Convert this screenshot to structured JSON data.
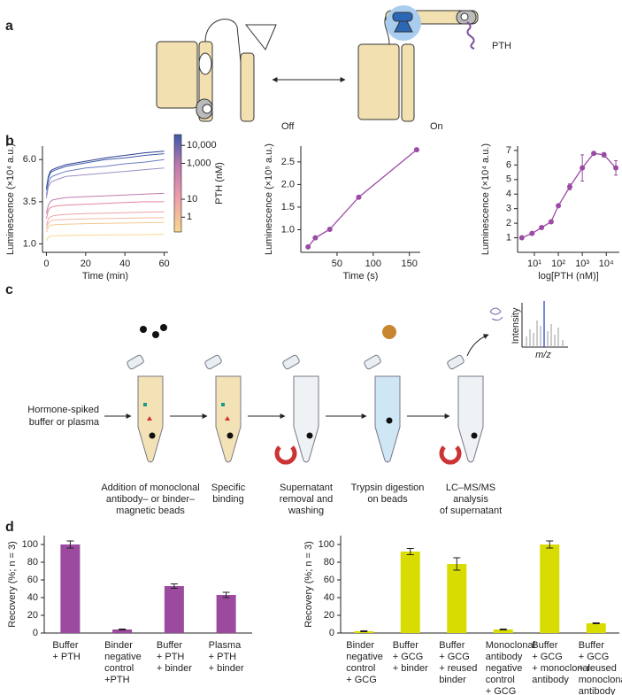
{
  "panel_labels": [
    "a",
    "b",
    "c",
    "d"
  ],
  "diagram_a": {
    "off": "Off",
    "on": "On",
    "ligand": "PTH"
  },
  "workflow_c": {
    "input": [
      "Hormone-spiked",
      "buffer or plasma"
    ],
    "steps": [
      [
        "Addition of monoclonal",
        "antibody– or binder–",
        "magnetic beads"
      ],
      [
        "Specific",
        "binding"
      ],
      [
        "Supernatant",
        "removal and",
        "washing"
      ],
      [
        "Trypsin digestion",
        "on beads"
      ],
      [
        "LC–MS/MS",
        "analysis",
        "of supernatant"
      ]
    ],
    "spectrum": {
      "y_label": "Intensity",
      "x_label": "m/z"
    }
  },
  "chart_data": [
    {
      "type": "line",
      "x_label": "Time (min)",
      "y_label": "Luminescence (×10⁴ a.u.)",
      "x": [
        0,
        1,
        2,
        3,
        5,
        10,
        20,
        30,
        40,
        50,
        60
      ],
      "xlim": [
        -2,
        62
      ],
      "xticks": [
        0,
        20,
        40,
        60
      ],
      "ylim": [
        0.5,
        6.8
      ],
      "yticks": [
        {
          "value": 1,
          "label": "1.0"
        },
        3.5,
        {
          "value": 6,
          "label": "6.0"
        }
      ],
      "series": [
        {
          "color": "#2b3f8f",
          "values": [
            4.3,
            5.0,
            5.3,
            5.4,
            5.5,
            5.7,
            5.9,
            6.1,
            6.25,
            6.4,
            6.5
          ]
        },
        {
          "color": "#3d5aa8",
          "values": [
            4.2,
            4.9,
            5.2,
            5.3,
            5.4,
            5.6,
            5.8,
            6.0,
            6.1,
            6.25,
            6.35
          ]
        },
        {
          "color": "#6a7fc0",
          "values": [
            3.9,
            4.6,
            4.9,
            5.0,
            5.1,
            5.3,
            5.5,
            5.6,
            5.75,
            5.85,
            6.0
          ]
        },
        {
          "color": "#9a8ec6",
          "values": [
            3.7,
            4.4,
            4.6,
            4.7,
            4.8,
            5.0,
            5.1,
            5.2,
            5.3,
            5.4,
            5.5
          ]
        },
        {
          "color": "#c27ab0",
          "values": [
            2.8,
            3.3,
            3.5,
            3.6,
            3.65,
            3.75,
            3.8,
            3.85,
            3.9,
            3.95,
            4.0
          ]
        },
        {
          "color": "#e486a0",
          "values": [
            2.5,
            3.0,
            3.15,
            3.2,
            3.25,
            3.3,
            3.35,
            3.4,
            3.45,
            3.5,
            3.5
          ]
        },
        {
          "color": "#f0a0a8",
          "values": [
            2.1,
            2.5,
            2.6,
            2.65,
            2.7,
            2.75,
            2.8,
            2.82,
            2.85,
            2.88,
            2.9
          ]
        },
        {
          "color": "#f3b8a0",
          "values": [
            1.9,
            2.25,
            2.35,
            2.4,
            2.42,
            2.45,
            2.48,
            2.5,
            2.52,
            2.54,
            2.55
          ]
        },
        {
          "color": "#f5c890",
          "values": [
            1.7,
            2.0,
            2.1,
            2.12,
            2.14,
            2.17,
            2.2,
            2.22,
            2.24,
            2.25,
            2.27
          ]
        },
        {
          "color": "#f7d890",
          "values": [
            1.2,
            1.4,
            1.45,
            1.47,
            1.48,
            1.5,
            1.52,
            1.53,
            1.54,
            1.55,
            1.56
          ]
        }
      ],
      "colorbar": {
        "label": "PTH (nM)",
        "log": true,
        "lim": [
          0.15,
          40000
        ],
        "ticks": [
          1,
          10,
          {
            "value": 1000,
            "label": "1,000"
          },
          {
            "value": 10000,
            "label": "10,000"
          }
        ],
        "colors": [
          "#f7d890",
          "#f0a0a8",
          "#c27ab0",
          "#3d5aa8"
        ]
      }
    },
    {
      "type": "line",
      "markers": true,
      "x_label": "Time (s)",
      "y_label": "Luminescence (×10⁵ a.u.)",
      "x": [
        10,
        20,
        40,
        80,
        160
      ],
      "xlim": [
        0,
        165
      ],
      "xticks": [
        50,
        100,
        150
      ],
      "ylim": [
        0.5,
        2.85
      ],
      "yticks": [
        {
          "value": 1,
          "label": "1.0"
        },
        1.5,
        {
          "value": 2,
          "label": "2.0"
        },
        2.5
      ],
      "series": [
        {
          "color": "#9b4aa6",
          "values": [
            0.62,
            0.82,
            1.01,
            1.72,
            2.77
          ]
        }
      ]
    },
    {
      "type": "line",
      "markers": true,
      "log_x": true,
      "x_label": "log[PTH (nM)]",
      "y_label": "Luminescence (×10⁴ a.u.)",
      "x": [
        3,
        8,
        20,
        50,
        100,
        300,
        1000,
        3000,
        8000,
        25000
      ],
      "xlim": [
        2,
        35000
      ],
      "xticks": [
        {
          "value": 10,
          "label": "10¹"
        },
        {
          "value": 100,
          "label": "10²"
        },
        {
          "value": 1000,
          "label": "10³"
        },
        {
          "value": 10000,
          "label": "10⁴"
        }
      ],
      "ylim": [
        0,
        7.3
      ],
      "yticks": [
        1,
        2,
        3,
        4,
        5,
        6,
        7
      ],
      "series": [
        {
          "color": "#9b4aa6",
          "values": [
            1.0,
            1.3,
            1.7,
            2.1,
            3.2,
            4.5,
            5.8,
            6.8,
            6.7,
            5.8
          ],
          "errors": [
            0.05,
            0.05,
            0.05,
            0.08,
            0.1,
            0.2,
            0.9,
            0.1,
            0.15,
            0.5
          ]
        }
      ]
    },
    {
      "type": "bar",
      "y_label": "Recovery (%; n = 3)",
      "color": "#9b4a9f",
      "categories": [
        [
          "Buffer",
          "+ PTH"
        ],
        [
          "Binder",
          "negative",
          "control",
          "+PTH"
        ],
        [
          "Buffer",
          "+ PTH",
          "+ binder"
        ],
        [
          "Plasma",
          "+ PTH",
          "+ binder"
        ]
      ],
      "values": [
        100,
        4,
        53,
        43
      ],
      "errors": [
        4,
        0.5,
        2.5,
        3
      ],
      "ylim": [
        0,
        110
      ],
      "yticks": [
        0,
        20,
        40,
        60,
        80,
        100
      ]
    },
    {
      "type": "bar",
      "y_label": "Recovery (%; n = 3)",
      "color": "#d9dc00",
      "categories": [
        [
          "Binder",
          "negative",
          "control",
          "+ GCG"
        ],
        [
          "Buffer",
          "+ GCG",
          "+ binder"
        ],
        [
          "Buffer",
          "+ GCG",
          "+ reused",
          "binder"
        ],
        [
          "Monoclonal",
          "antibody",
          "negative",
          "control",
          "+ GCG"
        ],
        [
          "Buffer",
          "+ GCG",
          "+ monoclonal",
          "antibody"
        ],
        [
          "Buffer",
          "+ GCG",
          "+ reused",
          "monoclonal",
          "antibody"
        ]
      ],
      "values": [
        2,
        92,
        78,
        4,
        100,
        11
      ],
      "errors": [
        0.5,
        3.5,
        7,
        0.5,
        4,
        0.5
      ],
      "ylim": [
        0,
        110
      ],
      "yticks": [
        0,
        20,
        40,
        60,
        80,
        100
      ]
    }
  ]
}
